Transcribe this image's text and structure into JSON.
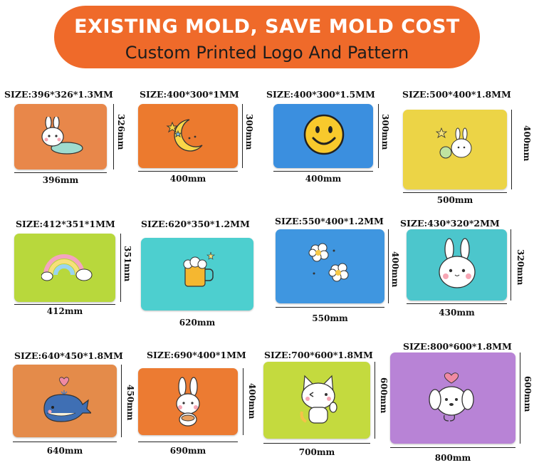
{
  "banner": {
    "line1": "EXISTING MOLD, SAVE MOLD COST",
    "line2": "Custom Printed Logo And Pattern",
    "color": "#ef6a2a"
  },
  "items": [
    {
      "size": "SIZE:396*326*1.3MM",
      "width": "396mm",
      "height": "326mm",
      "color": "#e8874a",
      "icon": "bunny-lying-icon"
    },
    {
      "size": "SIZE:400*300*1MM",
      "width": "400mm",
      "height": "300mm",
      "color": "#ec7a2e",
      "icon": "moon-stars-icon"
    },
    {
      "size": "SIZE:400*300*1.5MM",
      "width": "400mm",
      "height": "300mm",
      "color": "#3b8fdf",
      "icon": "smiley-face-icon"
    },
    {
      "size": "SIZE:500*400*1.8MM",
      "width": "500mm",
      "height": "400mm",
      "color": "#ecd446",
      "icon": "bunny-sparkle-icon"
    },
    {
      "size": "SIZE:412*351*1MM",
      "width": "412mm",
      "height": "351mm",
      "color": "#b8d83c",
      "icon": "rainbow-cloud-icon"
    },
    {
      "size": "SIZE:620*350*1.2MM",
      "width": "620mm",
      "height": "",
      "color": "#4dcfcf",
      "icon": "beer-mug-icon"
    },
    {
      "size": "SIZE:550*400*1.2MM",
      "width": "550mm",
      "height": "400mm",
      "color": "#3f96e0",
      "icon": "flowers-icon"
    },
    {
      "size": "SIZE:430*320*2MM",
      "width": "430mm",
      "height": "320mm",
      "color": "#4cc6cc",
      "icon": "bunny-face-icon"
    },
    {
      "size": "SIZE:640*450*1.8MM",
      "width": "640mm",
      "height": "450mm",
      "color": "#e48b4a",
      "icon": "whale-icon"
    },
    {
      "size": "SIZE:690*400*1MM",
      "width": "690mm",
      "height": "400mm",
      "color": "#ec7b32",
      "icon": "bunny-holding-icon"
    },
    {
      "size": "SIZE:700*600*1.8MM",
      "width": "700mm",
      "height": "600mm",
      "color": "#c4da3e",
      "icon": "cat-waving-icon"
    },
    {
      "size": "SIZE:800*600*1.8MM",
      "width": "800mm",
      "height": "600mm",
      "color": "#b883d6",
      "icon": "puppy-heart-icon"
    }
  ]
}
